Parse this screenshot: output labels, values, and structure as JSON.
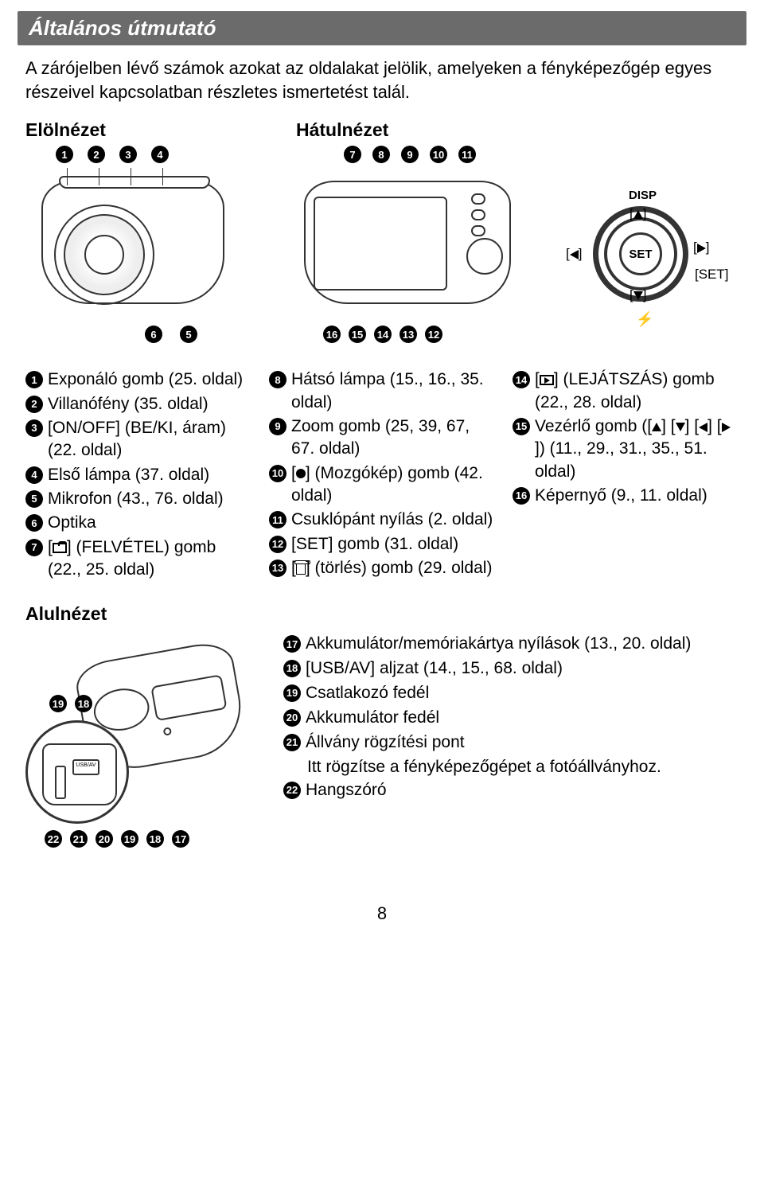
{
  "header": "Általános útmutató",
  "intro": "A zárójelben lévő számok azokat az oldalakat jelölik, amelyeken a fényképezőgép egyes részeivel kapcsolatban részletes ismertetést talál.",
  "frontLabel": "Elölnézet",
  "rearLabel": "Hátulnézet",
  "dpad": {
    "disp": "DISP",
    "center": "SET",
    "setSide": "[SET]"
  },
  "col1": [
    {
      "n": 1,
      "t": "Exponáló gomb (25. oldal)"
    },
    {
      "n": 2,
      "t": "Villanófény (35. oldal)"
    },
    {
      "n": 3,
      "t": "[ON/OFF] (BE/KI, áram) (22. oldal)"
    },
    {
      "n": 4,
      "t": "Első lámpa (37. oldal)"
    },
    {
      "n": 5,
      "t": "Mikrofon (43., 76. oldal)"
    },
    {
      "n": 6,
      "t": "Optika"
    },
    {
      "n": 7,
      "glyph": "cam",
      "pre": "[",
      "post": "] (FELVÉTEL) gomb (22., 25. oldal)"
    }
  ],
  "col2": [
    {
      "n": 8,
      "t": "Hátsó lámpa (15., 16., 35. oldal)"
    },
    {
      "n": 9,
      "t": "Zoom gomb (25, 39, 67, 67. oldal)"
    },
    {
      "n": 10,
      "glyph": "dot",
      "pre": "[",
      "post": "] (Mozgókép) gomb (42. oldal)"
    },
    {
      "n": 11,
      "t": "Csuklópánt nyílás (2. oldal)"
    },
    {
      "n": 12,
      "t": "[SET] gomb (31. oldal)"
    },
    {
      "n": 13,
      "glyph": "trash",
      "pre": "[",
      "post": "] (törlés) gomb (29. oldal)"
    }
  ],
  "col3": [
    {
      "n": 14,
      "glyph": "play",
      "pre": "[",
      "post": "] (LEJÁTSZÁS) gomb (22., 28. oldal)"
    },
    {
      "n": 15,
      "glyph": "arrows",
      "pre": "Vezérlő gomb (",
      "post": ") (11., 29., 31., 35., 51. oldal)"
    },
    {
      "n": 16,
      "t": "Képernyő (9., 11. oldal)"
    }
  ],
  "alul": "Alulnézet",
  "bottomList": [
    {
      "n": 17,
      "t": "Akkumulátor/memóriakártya nyílások (13., 20. oldal)"
    },
    {
      "n": 18,
      "t": "[USB/AV] aljzat (14., 15., 68. oldal)"
    },
    {
      "n": 19,
      "t": "Csatlakozó fedél"
    },
    {
      "n": 20,
      "t": "Akkumulátor fedél"
    },
    {
      "n": 21,
      "t": "Állvány rögzítési pont",
      "extra": "Itt rögzítse a fényképezőgépet a fotóállványhoz."
    },
    {
      "n": 22,
      "t": "Hangszóró"
    }
  ],
  "usbLabel": "USB/AV",
  "pageNum": "8"
}
